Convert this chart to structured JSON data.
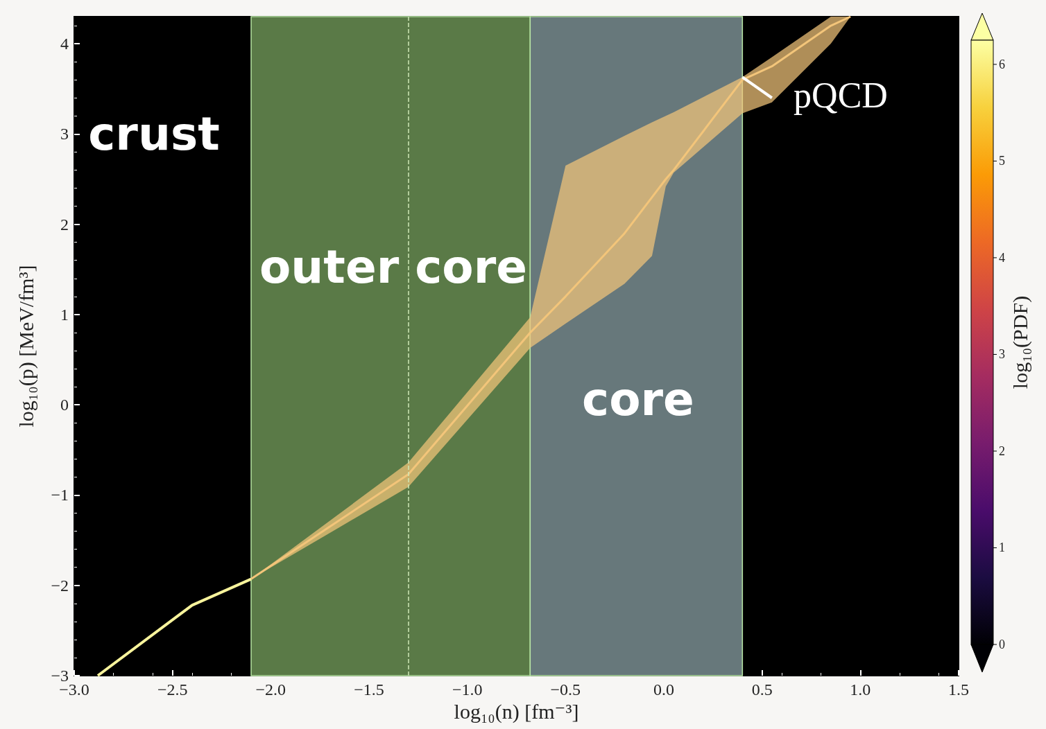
{
  "chart_data": {
    "type": "line",
    "xlabel": "log₁₀(n) [fm⁻³]",
    "ylabel": "log₁₀(p) [MeV/fm³]",
    "clabel": "log₁₀(PDF)",
    "clim": [
      0,
      6.25
    ],
    "cticks": [
      0,
      1,
      2,
      3,
      4,
      5,
      6
    ],
    "xlim": [
      -3,
      1.5
    ],
    "ylim": [
      -3,
      4.3
    ],
    "xticks": [
      {
        "value": -3,
        "label": "−3.0"
      },
      {
        "value": -2.5,
        "label": "−2.5"
      },
      {
        "value": -2,
        "label": "−2.0"
      },
      {
        "value": -1.5,
        "label": "−1.5"
      },
      {
        "value": -1,
        "label": "−1.0"
      },
      {
        "value": -0.5,
        "label": "−0.5"
      },
      {
        "value": 0,
        "label": "0.0"
      },
      {
        "value": 0.5,
        "label": "0.5"
      },
      {
        "value": 1,
        "label": "1.0"
      },
      {
        "value": 1.5,
        "label": "1.5"
      }
    ],
    "yticks": [
      {
        "value": -3,
        "label": "−3"
      },
      {
        "value": -2,
        "label": "−2"
      },
      {
        "value": -1,
        "label": "−1"
      },
      0,
      1,
      2,
      3,
      4
    ],
    "grid": false,
    "marker": "none",
    "series": [
      {
        "color": "#f8f49c",
        "x": [
          -2.88,
          -2.4,
          -2.1
        ],
        "values": [
          -3,
          -2.22,
          -1.93
        ]
      },
      {
        "color": "#f3c57a",
        "x": [
          -2.1,
          -1.3,
          -0.68,
          -0.5,
          -0.2,
          -0.06,
          0.01,
          0.05,
          0.4,
          0.55,
          0.85,
          0.95
        ],
        "values": [
          -1.93,
          -0.77,
          0.8,
          1.2,
          1.9,
          2.3,
          2.5,
          2.6,
          3.6,
          3.75,
          4.2,
          4.3
        ],
        "lower": [
          -1.93,
          -0.91,
          0.63,
          0.9,
          1.34,
          1.65,
          2.42,
          2.57,
          3.23,
          3.35,
          4.0,
          4.3
        ],
        "upper": [
          -1.93,
          -0.64,
          0.97,
          2.65,
          2.98,
          3.13,
          3.2,
          3.24,
          3.63,
          3.85,
          4.3,
          4.3
        ]
      },
      {
        "color": "#ffffff",
        "x": [
          0.4,
          0.55
        ],
        "values": [
          3.63,
          3.4
        ]
      }
    ],
    "bands": [
      {
        "axis": "x",
        "from": -2.1,
        "to": -0.68,
        "color": "#5a7a47"
      },
      {
        "axis": "x",
        "from": -0.68,
        "to": 0.4,
        "color": "#67787b"
      }
    ],
    "ref_lines": [
      {
        "axis": "x",
        "value": -1.3,
        "color": "#cfe8b8",
        "line_style": "dashed"
      }
    ],
    "annotations": [
      "crust",
      "outer core",
      "core",
      "pQCD"
    ]
  }
}
